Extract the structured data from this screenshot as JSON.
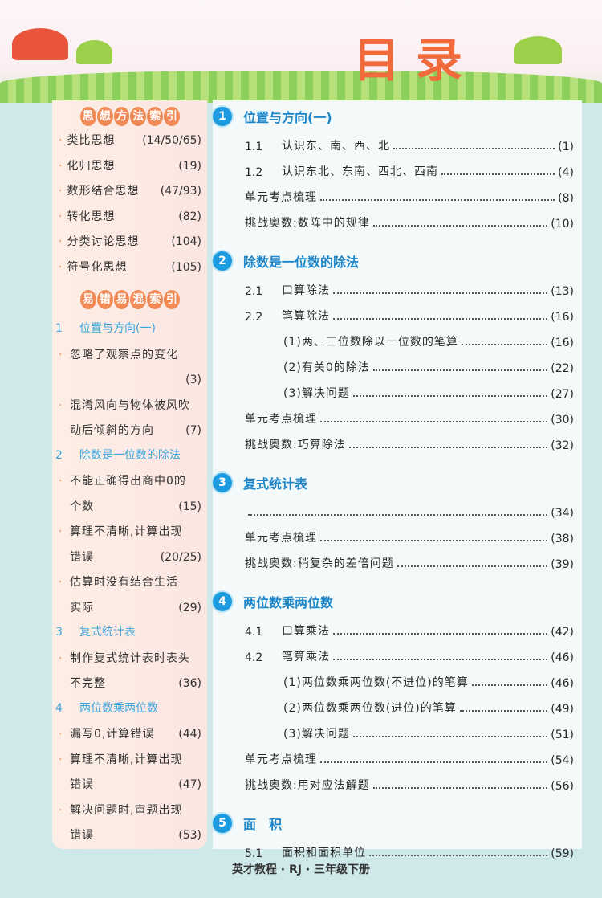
{
  "header": {
    "title": "目录"
  },
  "left": {
    "methods_title": [
      "思",
      "想",
      "方",
      "法",
      "索",
      "引"
    ],
    "methods": [
      {
        "text": "类比思想",
        "page": "(14/50/65)"
      },
      {
        "text": "化归思想",
        "page": "(19)"
      },
      {
        "text": "数形结合思想",
        "page": "(47/93)"
      },
      {
        "text": "转化思想",
        "page": "(82)"
      },
      {
        "text": "分类讨论思想",
        "page": "(104)"
      },
      {
        "text": "符号化思想",
        "page": "(105)"
      }
    ],
    "errors_title": [
      "易",
      "错",
      "易",
      "混",
      "索",
      "引"
    ],
    "errors": [
      {
        "num": "1",
        "title": "位置与方向(一)",
        "items": [
          {
            "lines": [
              "忽略了观察点的变化",
              ""
            ],
            "page": "(3)"
          },
          {
            "lines": [
              "混淆风向与物体被风吹",
              "动后倾斜的方向"
            ],
            "page": "(7)"
          }
        ]
      },
      {
        "num": "2",
        "title": "除数是一位数的除法",
        "items": [
          {
            "lines": [
              "不能正确得出商中0的",
              "个数"
            ],
            "page": "(15)"
          },
          {
            "lines": [
              "算理不清晰,计算出现",
              "错误"
            ],
            "page": "(20/25)"
          },
          {
            "lines": [
              "估算时没有结合生活",
              "实际"
            ],
            "page": "(29)"
          }
        ]
      },
      {
        "num": "3",
        "title": "复式统计表",
        "items": [
          {
            "lines": [
              "制作复式统计表时表头",
              "不完整"
            ],
            "page": "(36)"
          }
        ]
      },
      {
        "num": "4",
        "title": "两位数乘两位数",
        "items": [
          {
            "lines": [
              "漏写0,计算错误"
            ],
            "page": "(44)"
          },
          {
            "lines": [
              "算理不清晰,计算出现",
              "错误"
            ],
            "page": "(47)"
          },
          {
            "lines": [
              "解决问题时,审题出现",
              "错误"
            ],
            "page": "(53)"
          }
        ]
      }
    ]
  },
  "units": [
    {
      "num": "1",
      "title": "位置与方向(一)",
      "rows": [
        {
          "no": "1.1",
          "text": "认识东、南、西、北",
          "page": "(1)",
          "indent": 0
        },
        {
          "no": "1.2",
          "text": "认识东北、东南、西北、西南",
          "page": "(4)",
          "indent": 0
        },
        {
          "no": "",
          "text": "单元考点梳理",
          "page": "(8)",
          "indent": 0
        },
        {
          "no": "",
          "text": "挑战奥数:数阵中的规律",
          "page": "(10)",
          "indent": 0
        }
      ]
    },
    {
      "num": "2",
      "title": "除数是一位数的除法",
      "rows": [
        {
          "no": "2.1",
          "text": "口算除法",
          "page": "(13)",
          "indent": 0
        },
        {
          "no": "2.2",
          "text": "笔算除法",
          "page": "(16)",
          "indent": 0
        },
        {
          "no": "",
          "text": "(1)两、三位数除以一位数的笔算",
          "page": "(16)",
          "indent": 1
        },
        {
          "no": "",
          "text": "(2)有关0的除法",
          "page": "(22)",
          "indent": 1
        },
        {
          "no": "",
          "text": "(3)解决问题",
          "page": "(27)",
          "indent": 1
        },
        {
          "no": "",
          "text": "单元考点梳理",
          "page": "(30)",
          "indent": 0
        },
        {
          "no": "",
          "text": "挑战奥数:巧算除法",
          "page": "(32)",
          "indent": 0
        }
      ]
    },
    {
      "num": "3",
      "title": "复式统计表",
      "rows": [
        {
          "no": "",
          "text": "",
          "page": "(34)",
          "indent": 0
        },
        {
          "no": "",
          "text": "单元考点梳理",
          "page": "(38)",
          "indent": 0
        },
        {
          "no": "",
          "text": "挑战奥数:稍复杂的差倍问题",
          "page": "(39)",
          "indent": 0
        }
      ]
    },
    {
      "num": "4",
      "title": "两位数乘两位数",
      "rows": [
        {
          "no": "4.1",
          "text": "口算乘法",
          "page": "(42)",
          "indent": 0
        },
        {
          "no": "4.2",
          "text": "笔算乘法",
          "page": "(46)",
          "indent": 0
        },
        {
          "no": "",
          "text": "(1)两位数乘两位数(不进位)的笔算",
          "page": "(46)",
          "indent": 1
        },
        {
          "no": "",
          "text": "(2)两位数乘两位数(进位)的笔算",
          "page": "(49)",
          "indent": 1
        },
        {
          "no": "",
          "text": "(3)解决问题",
          "page": "(51)",
          "indent": 1
        },
        {
          "no": "",
          "text": "单元考点梳理",
          "page": "(54)",
          "indent": 0
        },
        {
          "no": "",
          "text": "挑战奥数:用对应法解题",
          "page": "(56)",
          "indent": 0
        }
      ]
    },
    {
      "num": "5",
      "title": "面　积",
      "rows": [
        {
          "no": "5.1",
          "text": "面积和面积单位",
          "page": "(59)",
          "indent": 0
        }
      ]
    }
  ],
  "footer": "英才教程 · RJ · 三年级下册",
  "colors": {
    "accent_blue": "#1d86c8",
    "accent_orange": "#f28a55",
    "title": "#f06a3c"
  }
}
